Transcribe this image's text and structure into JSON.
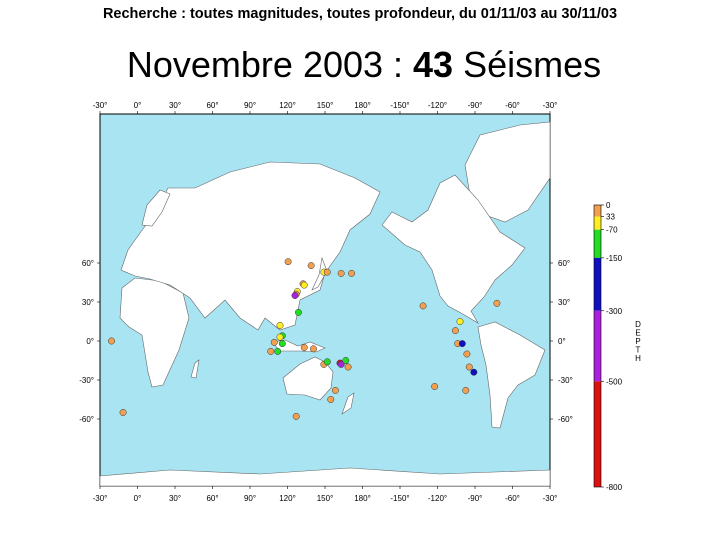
{
  "header": {
    "search_line": "Recherche : toutes magnitudes, toutes profondeur, du 01/11/03 au 30/11/03"
  },
  "title": {
    "prefix": "Novembre 2003 : ",
    "count": "43",
    "suffix": " Séismes"
  },
  "map": {
    "ocean_color": "#a8e4f2",
    "land_color": "#ffffff",
    "lon_tick_labels": [
      "-30°",
      "0°",
      "30°",
      "60°",
      "90°",
      "120°",
      "150°",
      "180°",
      "-150°",
      "-120°",
      "-90°",
      "-60°",
      "-30°"
    ],
    "lat_tick_labels_left": [
      "60°",
      "30°",
      "0°",
      "-30°",
      "-60°"
    ],
    "lat_tick_labels_right": [
      "60°",
      "30°",
      "0°",
      "-30°",
      "-60°"
    ]
  },
  "depth_legend": {
    "axis_title": "DEPTH",
    "tick_labels": [
      "0",
      "33",
      "-70",
      "-150",
      "-300",
      "-500",
      "-800"
    ],
    "bands": [
      {
        "from": 0,
        "to": 33,
        "color": "#f0a050"
      },
      {
        "from": 33,
        "to": 70,
        "color": "#ffee22"
      },
      {
        "from": 70,
        "to": 150,
        "color": "#22dd22"
      },
      {
        "from": 150,
        "to": 300,
        "color": "#1010c0"
      },
      {
        "from": 300,
        "to": 500,
        "color": "#aa22dd"
      },
      {
        "from": 500,
        "to": 800,
        "color": "#dd1010"
      }
    ]
  },
  "earthquakes": [
    {
      "lon": 133,
      "lat": 61,
      "color": "#f0a050"
    },
    {
      "lon": 146,
      "lat": 44,
      "color": "#f0a050"
    },
    {
      "lon": 147,
      "lat": 43,
      "color": "#ffee22"
    },
    {
      "lon": 153,
      "lat": 58,
      "color": "#f0a050"
    },
    {
      "lon": 164,
      "lat": 53,
      "color": "#ffee22"
    },
    {
      "lon": 167,
      "lat": 53,
      "color": "#f0a050"
    },
    {
      "lon": 179,
      "lat": 52,
      "color": "#f0a050"
    },
    {
      "lon": -172,
      "lat": 52,
      "color": "#f0a050"
    },
    {
      "lon": 141,
      "lat": 38,
      "color": "#ffee22"
    },
    {
      "lon": 140,
      "lat": 36,
      "color": "#f0a050"
    },
    {
      "lon": 139,
      "lat": 35,
      "color": "#aa22dd"
    },
    {
      "lon": 142,
      "lat": 22,
      "color": "#22dd22"
    },
    {
      "lon": 126,
      "lat": 12,
      "color": "#ffee22"
    },
    {
      "lon": 128,
      "lat": 4,
      "color": "#22dd22"
    },
    {
      "lon": 126,
      "lat": 3,
      "color": "#ffee22"
    },
    {
      "lon": 121,
      "lat": -1,
      "color": "#f0a050"
    },
    {
      "lon": 128,
      "lat": -2,
      "color": "#22dd22"
    },
    {
      "lon": 124,
      "lat": -8,
      "color": "#22dd22"
    },
    {
      "lon": 118,
      "lat": -8,
      "color": "#f0a050"
    },
    {
      "lon": 147,
      "lat": -5,
      "color": "#f0a050"
    },
    {
      "lon": 155,
      "lat": -6,
      "color": "#f0a050"
    },
    {
      "lon": 164,
      "lat": -18,
      "color": "#f0a050"
    },
    {
      "lon": 167,
      "lat": -16,
      "color": "#22dd22"
    },
    {
      "lon": 178,
      "lat": -17,
      "color": "#dd1010"
    },
    {
      "lon": 179,
      "lat": -18,
      "color": "#aa22dd"
    },
    {
      "lon": 183,
      "lat": -15,
      "color": "#22dd22"
    },
    {
      "lon": 185,
      "lat": -20,
      "color": "#f0a050"
    },
    {
      "lon": 174,
      "lat": -38,
      "color": "#f0a050"
    },
    {
      "lon": 170,
      "lat": -45,
      "color": "#f0a050"
    },
    {
      "lon": 140,
      "lat": -58,
      "color": "#f0a050"
    },
    {
      "lon": -20,
      "lat": 0,
      "color": "#f0a050"
    },
    {
      "lon": -10,
      "lat": -55,
      "color": "#f0a050"
    },
    {
      "lon": -110,
      "lat": 27,
      "color": "#f0a050"
    },
    {
      "lon": -78,
      "lat": 15,
      "color": "#ffee22"
    },
    {
      "lon": -82,
      "lat": 8,
      "color": "#f0a050"
    },
    {
      "lon": -80,
      "lat": -2,
      "color": "#f0a050"
    },
    {
      "lon": -76,
      "lat": -2,
      "color": "#1010c0"
    },
    {
      "lon": -72,
      "lat": -10,
      "color": "#f0a050"
    },
    {
      "lon": -70,
      "lat": -20,
      "color": "#f0a050"
    },
    {
      "lon": -66,
      "lat": -24,
      "color": "#1010c0"
    },
    {
      "lon": -73,
      "lat": -38,
      "color": "#f0a050"
    },
    {
      "lon": -100,
      "lat": -35,
      "color": "#f0a050"
    },
    {
      "lon": -46,
      "lat": 29,
      "color": "#f0a050"
    }
  ]
}
